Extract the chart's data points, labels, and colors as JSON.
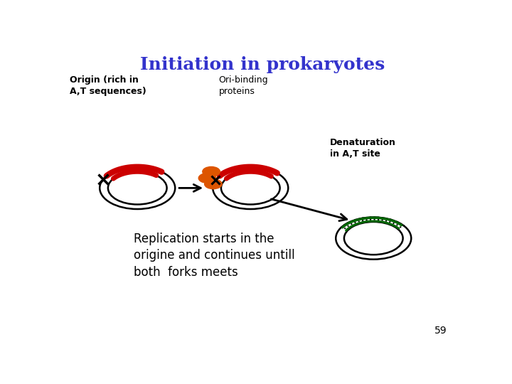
{
  "title": "Initiation in prokaryotes",
  "title_color": "#3333cc",
  "title_fontsize": 18,
  "bg_color": "#ffffff",
  "label_origin": "Origin (rich in\nA,T sequences)",
  "label_ori_binding": "Ori-binding\nproteins",
  "label_denaturation": "Denaturation\nin A,T site",
  "label_replication": "Replication starts in the\norigine and continues untill\nboth  forks meets",
  "label_page": "59",
  "red_color": "#cc0000",
  "orange_color": "#dd5500",
  "green_color": "#006600",
  "black_color": "#000000",
  "c1x": 0.185,
  "c1y": 0.52,
  "c2x": 0.47,
  "c2y": 0.52,
  "c3x": 0.78,
  "c3y": 0.35,
  "cr_outer": 0.095,
  "cr_inner_ratio": 0.78
}
